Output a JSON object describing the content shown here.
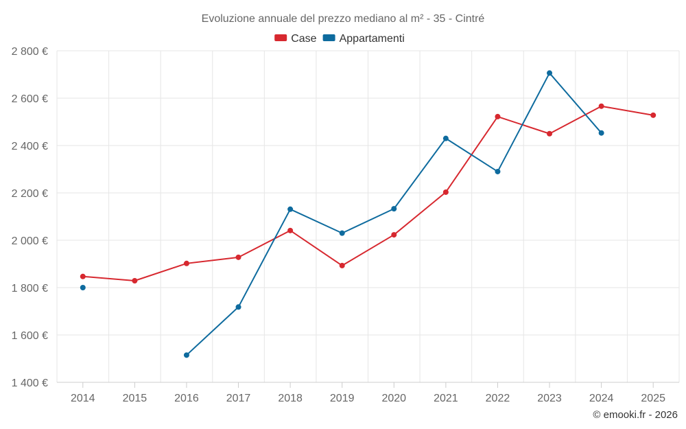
{
  "chart_data": {
    "type": "line",
    "title": "Evoluzione annuale del prezzo mediano al m² - 35 - Cintré",
    "xlabel": "",
    "ylabel": "",
    "categories": [
      "2014",
      "2015",
      "2016",
      "2017",
      "2018",
      "2019",
      "2020",
      "2021",
      "2022",
      "2023",
      "2024",
      "2025"
    ],
    "ylim": [
      1400,
      2800
    ],
    "yticks": [
      1400,
      1600,
      1800,
      2000,
      2200,
      2400,
      2600,
      2800
    ],
    "ytick_labels": [
      "1 400 €",
      "1 600 €",
      "1 800 €",
      "2 000 €",
      "2 200 €",
      "2 400 €",
      "2 600 €",
      "2 800 €"
    ],
    "legend_position": "top-center",
    "grid": true,
    "series": [
      {
        "name": "Case",
        "color": "#d7282f",
        "values": [
          1847,
          1829,
          1902,
          1928,
          2041,
          1893,
          2023,
          2203,
          2522,
          2450,
          2566,
          2528
        ]
      },
      {
        "name": "Appartamenti",
        "color": "#0e6b9e",
        "values": [
          1800,
          null,
          1515,
          1718,
          2131,
          2030,
          2133,
          2430,
          2290,
          2706,
          2453,
          null
        ]
      }
    ]
  },
  "credit": "© emooki.fr - 2026"
}
